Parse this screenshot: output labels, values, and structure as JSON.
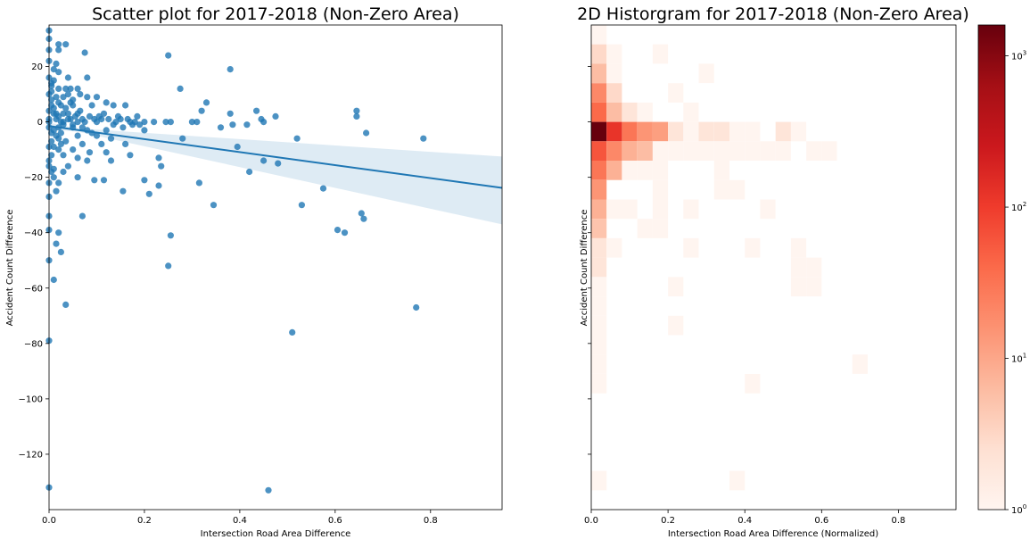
{
  "chart_data": [
    {
      "type": "scatter",
      "title": "Scatter plot for 2017-2018 (Non-Zero Area)",
      "xlabel": "Intersection Road Area Difference",
      "ylabel": "Accident Count Difference",
      "xlim": [
        0,
        0.95
      ],
      "ylim": [
        -140,
        35
      ],
      "xticks": [
        "0.0",
        "0.2",
        "0.4",
        "0.6",
        "0.8"
      ],
      "yticks": [
        "20",
        "0",
        "−20",
        "−40",
        "−60",
        "−80",
        "−100",
        "−120"
      ],
      "color": "#1f77b4",
      "regression": {
        "slope": -23.5,
        "intercept": -1.5,
        "ci_at_xmax": [
          -37,
          -12.5
        ]
      },
      "points": [
        [
          0.0,
          33
        ],
        [
          0.0,
          30
        ],
        [
          0.02,
          28
        ],
        [
          0.035,
          28
        ],
        [
          0.0,
          26
        ],
        [
          0.02,
          26
        ],
        [
          0.075,
          25
        ],
        [
          0.0,
          22
        ],
        [
          0.015,
          21
        ],
        [
          0.25,
          24
        ],
        [
          0.38,
          19
        ],
        [
          0.01,
          19
        ],
        [
          0.02,
          18
        ],
        [
          0.0,
          16
        ],
        [
          0.04,
          16
        ],
        [
          0.08,
          16
        ],
        [
          0.005,
          14
        ],
        [
          0.02,
          12
        ],
        [
          0.035,
          12
        ],
        [
          0.045,
          12
        ],
        [
          0.06,
          12
        ],
        [
          0.005,
          11
        ],
        [
          0.275,
          12
        ],
        [
          0.1,
          9
        ],
        [
          0.03,
          9
        ],
        [
          0.08,
          9
        ],
        [
          0.005,
          8
        ],
        [
          0.02,
          7
        ],
        [
          0.045,
          7
        ],
        [
          0.12,
          7
        ],
        [
          0.33,
          7
        ],
        [
          0.005,
          6
        ],
        [
          0.025,
          6
        ],
        [
          0.05,
          6
        ],
        [
          0.09,
          6
        ],
        [
          0.135,
          6
        ],
        [
          0.16,
          6
        ],
        [
          0.32,
          4
        ],
        [
          0.435,
          4
        ],
        [
          0.645,
          4
        ],
        [
          0.0,
          4
        ],
        [
          0.01,
          3
        ],
        [
          0.03,
          3
        ],
        [
          0.06,
          3
        ],
        [
          0.38,
          3
        ],
        [
          0.645,
          2
        ],
        [
          0.475,
          2
        ],
        [
          0.185,
          2
        ],
        [
          0.445,
          1
        ],
        [
          0.45,
          0
        ],
        [
          0.0,
          1
        ],
        [
          0.015,
          1
        ],
        [
          0.04,
          1
        ],
        [
          0.07,
          1
        ],
        [
          0.11,
          1
        ],
        [
          0.15,
          1
        ],
        [
          0.2,
          0
        ],
        [
          0.22,
          0
        ],
        [
          0.245,
          0
        ],
        [
          0.255,
          0
        ],
        [
          0.3,
          0
        ],
        [
          0.31,
          0
        ],
        [
          0.17,
          0
        ],
        [
          0.14,
          0
        ],
        [
          0.1,
          0
        ],
        [
          0.06,
          0
        ],
        [
          0.03,
          0
        ],
        [
          0.0,
          0
        ],
        [
          0.385,
          -1
        ],
        [
          0.415,
          -1
        ],
        [
          0.36,
          -2
        ],
        [
          0.19,
          -1
        ],
        [
          0.0,
          -2
        ],
        [
          0.02,
          -2
        ],
        [
          0.05,
          -2
        ],
        [
          0.08,
          -3
        ],
        [
          0.12,
          -3
        ],
        [
          0.2,
          -3
        ],
        [
          0.005,
          -4
        ],
        [
          0.025,
          -4
        ],
        [
          0.06,
          -5
        ],
        [
          0.1,
          -5
        ],
        [
          0.13,
          -6
        ],
        [
          0.28,
          -6
        ],
        [
          0.52,
          -6
        ],
        [
          0.785,
          -6
        ],
        [
          0.665,
          -4
        ],
        [
          0.005,
          -7
        ],
        [
          0.035,
          -7
        ],
        [
          0.07,
          -8
        ],
        [
          0.11,
          -8
        ],
        [
          0.16,
          -8
        ],
        [
          0.395,
          -9
        ],
        [
          0.0,
          -9
        ],
        [
          0.02,
          -10
        ],
        [
          0.05,
          -10
        ],
        [
          0.085,
          -11
        ],
        [
          0.12,
          -11
        ],
        [
          0.005,
          -12
        ],
        [
          0.03,
          -12
        ],
        [
          0.06,
          -13
        ],
        [
          0.17,
          -12
        ],
        [
          0.23,
          -13
        ],
        [
          0.08,
          -14
        ],
        [
          0.13,
          -14
        ],
        [
          0.45,
          -14
        ],
        [
          0.48,
          -15
        ],
        [
          0.0,
          -16
        ],
        [
          0.04,
          -16
        ],
        [
          0.235,
          -16
        ],
        [
          0.01,
          -17
        ],
        [
          0.03,
          -18
        ],
        [
          0.095,
          -21
        ],
        [
          0.115,
          -21
        ],
        [
          0.2,
          -21
        ],
        [
          0.42,
          -18
        ],
        [
          0.06,
          -20
        ],
        [
          0.0,
          -22
        ],
        [
          0.02,
          -22
        ],
        [
          0.315,
          -22
        ],
        [
          0.23,
          -23
        ],
        [
          0.575,
          -24
        ],
        [
          0.015,
          -25
        ],
        [
          0.155,
          -25
        ],
        [
          0.21,
          -26
        ],
        [
          0.0,
          -27
        ],
        [
          0.53,
          -30
        ],
        [
          0.345,
          -30
        ],
        [
          0.07,
          -34
        ],
        [
          0.0,
          -34
        ],
        [
          0.655,
          -33
        ],
        [
          0.66,
          -35
        ],
        [
          0.0,
          -39
        ],
        [
          0.605,
          -39
        ],
        [
          0.62,
          -40
        ],
        [
          0.02,
          -40
        ],
        [
          0.255,
          -41
        ],
        [
          0.015,
          -44
        ],
        [
          0.025,
          -47
        ],
        [
          0.0,
          -50
        ],
        [
          0.25,
          -52
        ],
        [
          0.01,
          -57
        ],
        [
          0.035,
          -66
        ],
        [
          0.77,
          -67
        ],
        [
          0.51,
          -76
        ],
        [
          0.0,
          -79
        ],
        [
          0.0,
          -132
        ],
        [
          0.46,
          -133
        ],
        [
          0.01,
          5
        ],
        [
          0.015,
          3
        ],
        [
          0.02,
          2
        ],
        [
          0.025,
          0
        ],
        [
          0.03,
          -1
        ],
        [
          0.01,
          -3
        ],
        [
          0.015,
          -5
        ],
        [
          0.02,
          -6
        ],
        [
          0.025,
          -8
        ],
        [
          0.01,
          -9
        ],
        [
          0.035,
          5
        ],
        [
          0.04,
          3
        ],
        [
          0.045,
          1
        ],
        [
          0.05,
          -1
        ],
        [
          0.055,
          2
        ],
        [
          0.065,
          4
        ],
        [
          0.07,
          -2
        ],
        [
          0.075,
          0
        ],
        [
          0.085,
          2
        ],
        [
          0.09,
          -4
        ],
        [
          0.095,
          1
        ],
        [
          0.105,
          2
        ],
        [
          0.115,
          3
        ],
        [
          0.125,
          1
        ],
        [
          0.135,
          -1
        ],
        [
          0.145,
          2
        ],
        [
          0.155,
          -2
        ],
        [
          0.165,
          1
        ],
        [
          0.175,
          -1
        ],
        [
          0.18,
          0
        ],
        [
          0.0,
          10
        ],
        [
          0.005,
          13
        ],
        [
          0.01,
          15
        ],
        [
          0.015,
          9
        ],
        [
          0.04,
          10
        ],
        [
          0.05,
          8
        ],
        [
          0.065,
          10
        ],
        [
          0.0,
          -14
        ],
        [
          0.005,
          -18
        ],
        [
          0.01,
          -20
        ]
      ]
    },
    {
      "type": "heatmap",
      "title": "2D Historgram for 2017-2018 (Non-Zero Area)",
      "xlabel": "Intersection Road Area Difference (Normalized)",
      "ylabel": "Accident Count Difference",
      "xlim": [
        0,
        0.95
      ],
      "ylim": [
        -140,
        35
      ],
      "xticks": [
        "0.0",
        "0.2",
        "0.4",
        "0.6",
        "0.8"
      ],
      "colorbar": {
        "scale": "log",
        "min": 1,
        "max": 1600,
        "ticks": [
          "10",
          "10",
          "10",
          "10"
        ],
        "tick_exponents": [
          "0",
          "1",
          "2",
          "3"
        ],
        "tick_values": [
          1,
          10,
          100,
          1000
        ]
      },
      "bin_width_x": 0.04,
      "bin_height_y": 7,
      "cells": [
        [
          0,
          28,
          1
        ],
        [
          0,
          21,
          3
        ],
        [
          1,
          21,
          1
        ],
        [
          0,
          14,
          6
        ],
        [
          1,
          14,
          1
        ],
        [
          4,
          21,
          1
        ],
        [
          7,
          14,
          1
        ],
        [
          0,
          7,
          20
        ],
        [
          1,
          7,
          3
        ],
        [
          5,
          7,
          1
        ],
        [
          0,
          0,
          40
        ],
        [
          1,
          0,
          6
        ],
        [
          2,
          0,
          2
        ],
        [
          3,
          0,
          1
        ],
        [
          6,
          0,
          1
        ],
        [
          0,
          -7,
          1600
        ],
        [
          1,
          -7,
          120
        ],
        [
          2,
          -7,
          30
        ],
        [
          3,
          -7,
          15
        ],
        [
          4,
          -7,
          12
        ],
        [
          5,
          -7,
          2
        ],
        [
          6,
          -7,
          1
        ],
        [
          7,
          -7,
          2
        ],
        [
          8,
          -7,
          2
        ],
        [
          9,
          -7,
          1
        ],
        [
          10,
          -7,
          1
        ],
        [
          12,
          -7,
          2
        ],
        [
          13,
          -7,
          1
        ],
        [
          0,
          -14,
          60
        ],
        [
          1,
          -14,
          20
        ],
        [
          2,
          -14,
          8
        ],
        [
          3,
          -14,
          6
        ],
        [
          4,
          -14,
          1
        ],
        [
          5,
          -14,
          1
        ],
        [
          6,
          -14,
          1
        ],
        [
          7,
          -14,
          1
        ],
        [
          8,
          -14,
          1
        ],
        [
          9,
          -14,
          1
        ],
        [
          10,
          -14,
          1
        ],
        [
          11,
          -14,
          1
        ],
        [
          12,
          -14,
          1
        ],
        [
          14,
          -14,
          1
        ],
        [
          15,
          -14,
          1
        ],
        [
          0,
          -21,
          30
        ],
        [
          1,
          -21,
          8
        ],
        [
          2,
          -21,
          1
        ],
        [
          3,
          -21,
          1
        ],
        [
          4,
          -21,
          1
        ],
        [
          8,
          -21,
          1
        ],
        [
          0,
          -28,
          15
        ],
        [
          4,
          -28,
          1
        ],
        [
          8,
          -28,
          1
        ],
        [
          9,
          -28,
          1
        ],
        [
          0,
          -35,
          8
        ],
        [
          1,
          -35,
          1
        ],
        [
          2,
          -35,
          1
        ],
        [
          4,
          -35,
          1
        ],
        [
          6,
          -35,
          1
        ],
        [
          11,
          -35,
          1
        ],
        [
          0,
          -42,
          5
        ],
        [
          3,
          -42,
          1
        ],
        [
          4,
          -42,
          1
        ],
        [
          0,
          -49,
          2
        ],
        [
          1,
          -49,
          1
        ],
        [
          6,
          -49,
          1
        ],
        [
          10,
          -49,
          1
        ],
        [
          13,
          -49,
          1
        ],
        [
          0,
          -56,
          2
        ],
        [
          13,
          -56,
          1
        ],
        [
          14,
          -56,
          1
        ],
        [
          0,
          -63,
          1
        ],
        [
          5,
          -63,
          1
        ],
        [
          13,
          -63,
          1
        ],
        [
          14,
          -63,
          1
        ],
        [
          0,
          -70,
          1
        ],
        [
          0,
          -77,
          1
        ],
        [
          5,
          -77,
          1
        ],
        [
          0,
          -84,
          1
        ],
        [
          0,
          -91,
          1
        ],
        [
          17,
          -91,
          1
        ],
        [
          0,
          -98,
          1
        ],
        [
          10,
          -98,
          1
        ],
        [
          0,
          -133,
          1
        ],
        [
          9,
          -133,
          1
        ]
      ]
    }
  ]
}
